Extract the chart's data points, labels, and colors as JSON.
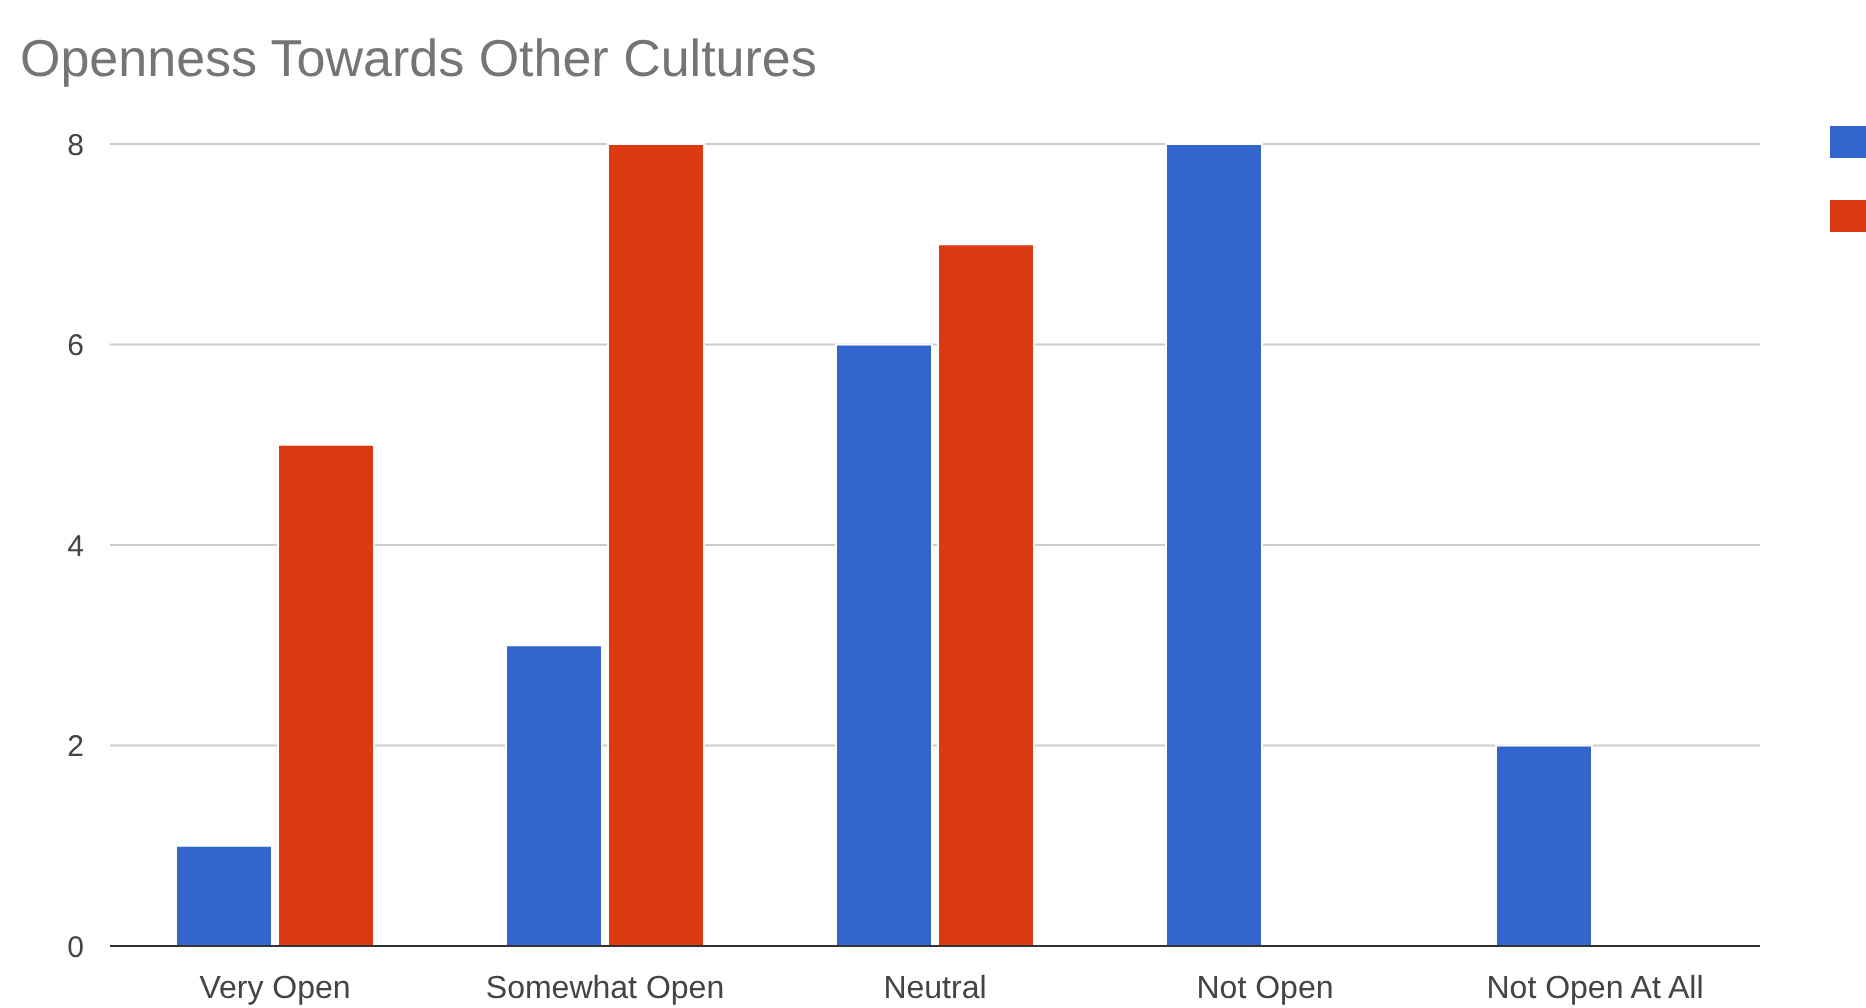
{
  "chart_data": {
    "type": "bar",
    "title": "Openness Towards Other Cultures",
    "categories": [
      "Very Open",
      "Somewhat Open",
      "Neutral",
      "Not Open",
      "Not Open At All"
    ],
    "series": [
      {
        "color": "#3366cc",
        "values": [
          1,
          3,
          6,
          8,
          2
        ]
      },
      {
        "color": "#dc3912",
        "values": [
          5,
          8,
          7,
          0,
          0
        ]
      }
    ],
    "ylim": [
      0,
      8
    ],
    "yticks": [
      0,
      2,
      4,
      6,
      8
    ],
    "grid": "y"
  }
}
